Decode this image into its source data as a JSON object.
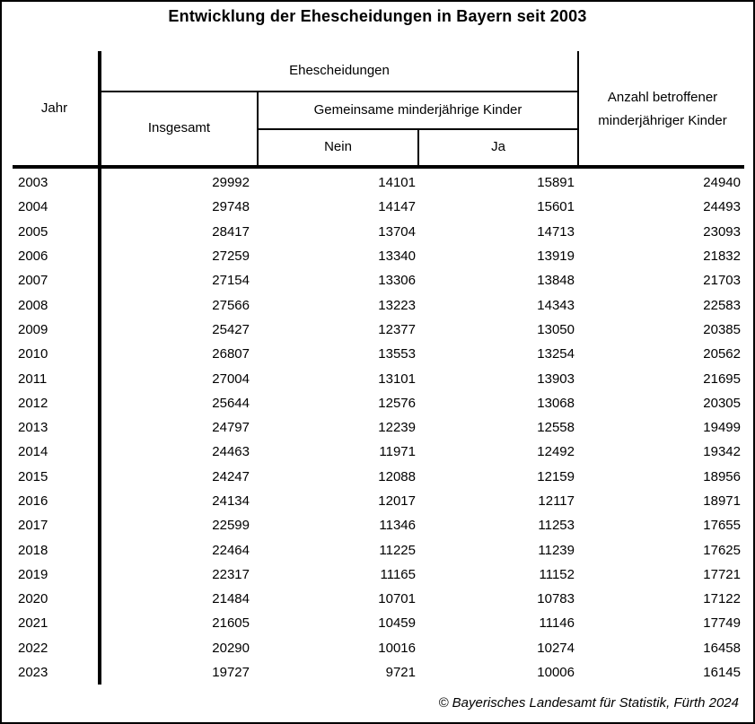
{
  "title": "Entwicklung der Ehescheidungen in Bayern seit 2003",
  "table": {
    "header": {
      "jahr": "Jahr",
      "ehescheidungen": "Ehescheidungen",
      "insgesamt": "Insgesamt",
      "gemeinsame_kinder": "Gemeinsame minderjährige Kinder",
      "nein": "Nein",
      "ja": "Ja",
      "anzahl_betroffene": "Anzahl betroffener minderjähriger Kinder"
    },
    "rows": [
      {
        "jahr": "2003",
        "insgesamt": "29992",
        "nein": "14101",
        "ja": "15891",
        "kinder": "24940"
      },
      {
        "jahr": "2004",
        "insgesamt": "29748",
        "nein": "14147",
        "ja": "15601",
        "kinder": "24493"
      },
      {
        "jahr": "2005",
        "insgesamt": "28417",
        "nein": "13704",
        "ja": "14713",
        "kinder": "23093"
      },
      {
        "jahr": "2006",
        "insgesamt": "27259",
        "nein": "13340",
        "ja": "13919",
        "kinder": "21832"
      },
      {
        "jahr": "2007",
        "insgesamt": "27154",
        "nein": "13306",
        "ja": "13848",
        "kinder": "21703"
      },
      {
        "jahr": "2008",
        "insgesamt": "27566",
        "nein": "13223",
        "ja": "14343",
        "kinder": "22583"
      },
      {
        "jahr": "2009",
        "insgesamt": "25427",
        "nein": "12377",
        "ja": "13050",
        "kinder": "20385"
      },
      {
        "jahr": "2010",
        "insgesamt": "26807",
        "nein": "13553",
        "ja": "13254",
        "kinder": "20562"
      },
      {
        "jahr": "2011",
        "insgesamt": "27004",
        "nein": "13101",
        "ja": "13903",
        "kinder": "21695"
      },
      {
        "jahr": "2012",
        "insgesamt": "25644",
        "nein": "12576",
        "ja": "13068",
        "kinder": "20305"
      },
      {
        "jahr": "2013",
        "insgesamt": "24797",
        "nein": "12239",
        "ja": "12558",
        "kinder": "19499"
      },
      {
        "jahr": "2014",
        "insgesamt": "24463",
        "nein": "11971",
        "ja": "12492",
        "kinder": "19342"
      },
      {
        "jahr": "2015",
        "insgesamt": "24247",
        "nein": "12088",
        "ja": "12159",
        "kinder": "18956"
      },
      {
        "jahr": "2016",
        "insgesamt": "24134",
        "nein": "12017",
        "ja": "12117",
        "kinder": "18971"
      },
      {
        "jahr": "2017",
        "insgesamt": "22599",
        "nein": "11346",
        "ja": "11253",
        "kinder": "17655"
      },
      {
        "jahr": "2018",
        "insgesamt": "22464",
        "nein": "11225",
        "ja": "11239",
        "kinder": "17625"
      },
      {
        "jahr": "2019",
        "insgesamt": "22317",
        "nein": "11165",
        "ja": "11152",
        "kinder": "17721"
      },
      {
        "jahr": "2020",
        "insgesamt": "21484",
        "nein": "10701",
        "ja": "10783",
        "kinder": "17122"
      },
      {
        "jahr": "2021",
        "insgesamt": "21605",
        "nein": "10459",
        "ja": "11146",
        "kinder": "17749"
      },
      {
        "jahr": "2022",
        "insgesamt": "20290",
        "nein": "10016",
        "ja": "10274",
        "kinder": "16458"
      },
      {
        "jahr": "2023",
        "insgesamt": "19727",
        "nein": "9721",
        "ja": "10006",
        "kinder": "16145"
      }
    ]
  },
  "footer": {
    "copyright": "© Bayerisches Landesamt für Statistik, Fürth 2024"
  },
  "colors": {
    "background": "#ffffff",
    "text": "#000000",
    "rules": "#000000"
  },
  "chart_data": {
    "type": "table",
    "title": "Entwicklung der Ehescheidungen in Bayern seit 2003",
    "columns": [
      "Jahr",
      "Ehescheidungen Insgesamt",
      "Ehescheidungen – Gemeinsame minderjährige Kinder: Nein",
      "Ehescheidungen – Gemeinsame minderjährige Kinder: Ja",
      "Anzahl betroffener minderjähriger Kinder"
    ],
    "rows": [
      [
        2003,
        29992,
        14101,
        15891,
        24940
      ],
      [
        2004,
        29748,
        14147,
        15601,
        24493
      ],
      [
        2005,
        28417,
        13704,
        14713,
        23093
      ],
      [
        2006,
        27259,
        13340,
        13919,
        21832
      ],
      [
        2007,
        27154,
        13306,
        13848,
        21703
      ],
      [
        2008,
        27566,
        13223,
        14343,
        22583
      ],
      [
        2009,
        25427,
        12377,
        13050,
        20385
      ],
      [
        2010,
        26807,
        13553,
        13254,
        20562
      ],
      [
        2011,
        27004,
        13101,
        13903,
        21695
      ],
      [
        2012,
        25644,
        12576,
        13068,
        20305
      ],
      [
        2013,
        24797,
        12239,
        12558,
        19499
      ],
      [
        2014,
        24463,
        11971,
        12492,
        19342
      ],
      [
        2015,
        24247,
        12088,
        12159,
        18956
      ],
      [
        2016,
        24134,
        12017,
        12117,
        18971
      ],
      [
        2017,
        22599,
        11346,
        11253,
        17655
      ],
      [
        2018,
        22464,
        11225,
        11239,
        17625
      ],
      [
        2019,
        22317,
        11165,
        11152,
        17721
      ],
      [
        2020,
        21484,
        10701,
        10783,
        17122
      ],
      [
        2021,
        21605,
        10459,
        11146,
        17749
      ],
      [
        2022,
        20290,
        10016,
        10274,
        16458
      ],
      [
        2023,
        19727,
        9721,
        10006,
        16145
      ]
    ],
    "source": "© Bayerisches Landesamt für Statistik, Fürth 2024"
  }
}
